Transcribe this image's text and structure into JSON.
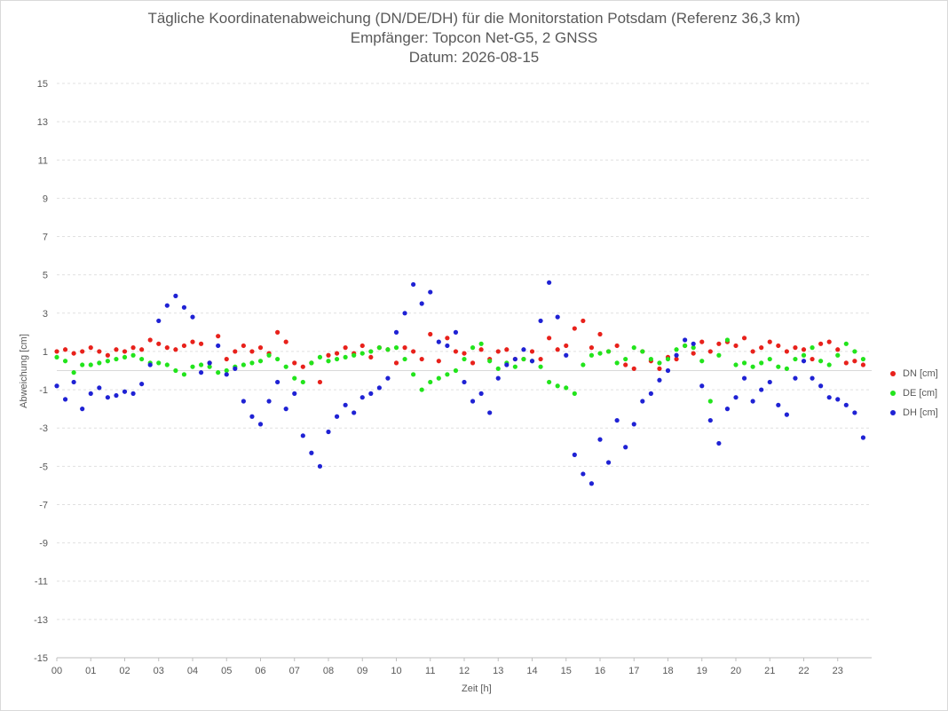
{
  "chart_data": {
    "type": "scatter",
    "title": [
      "Tägliche Koordinatenabweichung (DN/DE/DH) für die Monitorstation Potsdam (Referenz 36,3 km)",
      "Empfänger: Topcon Net-G5, 2 GNSS",
      "Datum: 2026-08-15"
    ],
    "xlabel": "Zeit [h]",
    "ylabel": "Abweichung [cm]",
    "xlim": [
      0,
      24
    ],
    "ylim": [
      -15,
      15
    ],
    "xticks": [
      "00",
      "01",
      "02",
      "03",
      "04",
      "05",
      "06",
      "07",
      "08",
      "09",
      "10",
      "11",
      "12",
      "13",
      "14",
      "15",
      "16",
      "17",
      "18",
      "19",
      "20",
      "21",
      "22",
      "23"
    ],
    "yticks": [
      15,
      13,
      11,
      9,
      7,
      5,
      3,
      1,
      -1,
      -3,
      -5,
      -7,
      -9,
      -11,
      -13,
      -15
    ],
    "grid": "horizontal-dashed",
    "legend_position": "right",
    "series": [
      {
        "name": "DN [cm]",
        "color": "#e8211b",
        "x": [
          0,
          0.25,
          0.5,
          0.75,
          1,
          1.25,
          1.5,
          1.75,
          2,
          2.25,
          2.5,
          2.75,
          3,
          3.25,
          3.5,
          3.75,
          4,
          4.25,
          4.5,
          4.75,
          5,
          5.25,
          5.5,
          5.75,
          6,
          6.25,
          6.5,
          6.75,
          7,
          7.25,
          7.5,
          7.75,
          8,
          8.25,
          8.5,
          8.75,
          9,
          9.25,
          9.5,
          9.75,
          10,
          10.25,
          10.5,
          10.75,
          11,
          11.25,
          11.5,
          11.75,
          12,
          12.25,
          12.5,
          12.75,
          13,
          13.25,
          13.5,
          13.75,
          14,
          14.25,
          14.5,
          14.75,
          15,
          15.25,
          15.5,
          15.75,
          16,
          16.25,
          16.5,
          16.75,
          17,
          17.25,
          17.5,
          17.75,
          18,
          18.25,
          18.5,
          18.75,
          19,
          19.25,
          19.5,
          19.75,
          20,
          20.25,
          20.5,
          20.75,
          21,
          21.25,
          21.5,
          21.75,
          22,
          22.25,
          22.5,
          22.75,
          23,
          23.25,
          23.5,
          23.75
        ],
        "y": [
          1.0,
          1.1,
          0.9,
          1.0,
          1.2,
          1.0,
          0.8,
          1.1,
          1.0,
          1.2,
          1.1,
          1.6,
          1.4,
          1.2,
          1.1,
          1.3,
          1.5,
          1.4,
          0.4,
          1.8,
          0.6,
          1.0,
          1.3,
          1.0,
          1.2,
          0.9,
          2.0,
          1.5,
          0.4,
          0.2,
          0.4,
          -0.6,
          0.8,
          0.9,
          1.2,
          0.9,
          1.3,
          0.7,
          1.2,
          1.1,
          0.4,
          1.2,
          1.0,
          0.6,
          1.9,
          0.5,
          1.7,
          1.0,
          0.9,
          0.4,
          1.1,
          0.6,
          1.0,
          1.1,
          0.6,
          0.6,
          1.0,
          0.6,
          1.7,
          1.1,
          1.3,
          2.2,
          2.6,
          1.2,
          1.9,
          1.0,
          1.3,
          0.3,
          0.1,
          1.0,
          0.5,
          0.1,
          0.7,
          0.6,
          1.3,
          0.9,
          1.5,
          1.0,
          1.4,
          1.5,
          1.3,
          1.7,
          1.0,
          1.2,
          1.5,
          1.3,
          1.0,
          1.2,
          1.1,
          0.6,
          1.4,
          1.5,
          1.1,
          0.4,
          0.5,
          0.3
        ]
      },
      {
        "name": "DE [cm]",
        "color": "#22e41c",
        "x": [
          0,
          0.25,
          0.5,
          0.75,
          1,
          1.25,
          1.5,
          1.75,
          2,
          2.25,
          2.5,
          2.75,
          3,
          3.25,
          3.5,
          3.75,
          4,
          4.25,
          4.5,
          4.75,
          5,
          5.25,
          5.5,
          5.75,
          6,
          6.25,
          6.5,
          6.75,
          7,
          7.25,
          7.5,
          7.75,
          8,
          8.25,
          8.5,
          8.75,
          9,
          9.25,
          9.5,
          9.75,
          10,
          10.25,
          10.5,
          10.75,
          11,
          11.25,
          11.5,
          11.75,
          12,
          12.25,
          12.5,
          12.75,
          13,
          13.25,
          13.5,
          13.75,
          14,
          14.25,
          14.5,
          14.75,
          15,
          15.25,
          15.5,
          15.75,
          16,
          16.25,
          16.5,
          16.75,
          17,
          17.25,
          17.5,
          17.75,
          18,
          18.25,
          18.5,
          18.75,
          19,
          19.25,
          19.5,
          19.75,
          20,
          20.25,
          20.5,
          20.75,
          21,
          21.25,
          21.5,
          21.75,
          22,
          22.25,
          22.5,
          22.75,
          23,
          23.25,
          23.5,
          23.75
        ],
        "y": [
          0.7,
          0.5,
          -0.1,
          0.3,
          0.3,
          0.4,
          0.5,
          0.6,
          0.7,
          0.8,
          0.6,
          0.4,
          0.4,
          0.3,
          0.0,
          -0.2,
          0.2,
          0.3,
          0.2,
          -0.1,
          0.0,
          0.2,
          0.3,
          0.4,
          0.5,
          0.8,
          0.6,
          0.2,
          -0.4,
          -0.6,
          0.4,
          0.7,
          0.5,
          0.6,
          0.7,
          0.8,
          0.9,
          1.0,
          1.2,
          1.1,
          1.2,
          0.6,
          -0.2,
          -1.0,
          -0.6,
          -0.4,
          -0.2,
          0.0,
          0.6,
          1.2,
          1.4,
          0.5,
          0.1,
          0.4,
          0.2,
          0.6,
          0.5,
          0.2,
          -0.6,
          -0.8,
          -0.9,
          -1.2,
          0.3,
          0.8,
          0.9,
          1.0,
          0.4,
          0.6,
          1.2,
          1.0,
          0.6,
          0.4,
          0.6,
          1.1,
          1.3,
          1.2,
          0.5,
          -1.6,
          0.8,
          1.6,
          0.3,
          0.4,
          0.2,
          0.4,
          0.6,
          0.2,
          0.1,
          0.6,
          0.8,
          1.2,
          0.5,
          0.3,
          0.8,
          1.4,
          1.0,
          0.6
        ]
      },
      {
        "name": "DH [cm]",
        "color": "#1f22d4",
        "x": [
          0,
          0.25,
          0.5,
          0.75,
          1,
          1.25,
          1.5,
          1.75,
          2,
          2.25,
          2.5,
          2.75,
          3,
          3.25,
          3.5,
          3.75,
          4,
          4.25,
          4.5,
          4.75,
          5,
          5.25,
          5.5,
          5.75,
          6,
          6.25,
          6.5,
          6.75,
          7,
          7.25,
          7.5,
          7.75,
          8,
          8.25,
          8.5,
          8.75,
          9,
          9.25,
          9.5,
          9.75,
          10,
          10.25,
          10.5,
          10.75,
          11,
          11.25,
          11.5,
          11.75,
          12,
          12.25,
          12.5,
          12.75,
          13,
          13.25,
          13.5,
          13.75,
          14,
          14.25,
          14.5,
          14.75,
          15,
          15.25,
          15.5,
          15.75,
          16,
          16.25,
          16.5,
          16.75,
          17,
          17.25,
          17.5,
          17.75,
          18,
          18.25,
          18.5,
          18.75,
          19,
          19.25,
          19.5,
          19.75,
          20,
          20.25,
          20.5,
          20.75,
          21,
          21.25,
          21.5,
          21.75,
          22,
          22.25,
          22.5,
          22.75,
          23,
          23.25,
          23.5,
          23.75
        ],
        "y": [
          -0.8,
          -1.5,
          -0.6,
          -2.0,
          -1.2,
          -0.9,
          -1.4,
          -1.3,
          -1.1,
          -1.2,
          -0.7,
          0.3,
          2.6,
          3.4,
          3.9,
          3.3,
          2.8,
          -0.1,
          0.4,
          1.3,
          -0.2,
          0.1,
          -1.6,
          -2.4,
          -2.8,
          -1.6,
          -0.6,
          -2.0,
          -1.2,
          -3.4,
          -4.3,
          -5.0,
          -3.2,
          -2.4,
          -1.8,
          -2.2,
          -1.4,
          -1.2,
          -0.9,
          -0.4,
          2.0,
          3.0,
          4.5,
          3.5,
          4.1,
          1.5,
          1.3,
          2.0,
          -0.6,
          -1.6,
          -1.2,
          -2.2,
          -0.4,
          0.3,
          0.6,
          1.1,
          0.5,
          2.6,
          4.6,
          2.8,
          0.8,
          -4.4,
          -5.4,
          -5.9,
          -3.6,
          -4.8,
          -2.6,
          -4.0,
          -2.8,
          -1.6,
          -1.2,
          -0.5,
          0.0,
          0.8,
          1.6,
          1.4,
          -0.8,
          -2.6,
          -3.8,
          -2.0,
          -1.4,
          -0.4,
          -1.6,
          -1.0,
          -0.6,
          -1.8,
          -2.3,
          -0.4,
          0.5,
          -0.4,
          -0.8,
          -1.4,
          -1.5,
          -1.8,
          -2.2,
          -3.5
        ]
      }
    ]
  }
}
